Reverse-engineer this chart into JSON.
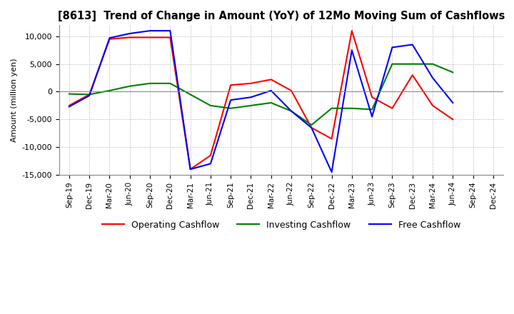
{
  "title": "[8613]  Trend of Change in Amount (YoY) of 12Mo Moving Sum of Cashflows",
  "ylabel": "Amount (million yen)",
  "background_color": "#ffffff",
  "grid_color": "#aaaaaa",
  "x_labels": [
    "Sep-19",
    "Dec-19",
    "Mar-20",
    "Jun-20",
    "Sep-20",
    "Dec-20",
    "Mar-21",
    "Jun-21",
    "Sep-21",
    "Dec-21",
    "Mar-22",
    "Jun-22",
    "Sep-22",
    "Dec-22",
    "Mar-23",
    "Jun-23",
    "Sep-23",
    "Dec-23",
    "Mar-24",
    "Jun-24",
    "Sep-24",
    "Dec-24"
  ],
  "operating": [
    -2500,
    -500,
    9500,
    9800,
    9800,
    9800,
    -14000,
    -11500,
    1200,
    1500,
    2200,
    200,
    -6500,
    -8500,
    11000,
    -1000,
    -3000,
    3000,
    -2500,
    -5000,
    null,
    null
  ],
  "investing": [
    -400,
    -500,
    200,
    1000,
    1500,
    1500,
    -500,
    -2500,
    -3000,
    -2500,
    -2000,
    -3500,
    -6000,
    -3000,
    -3000,
    -3200,
    5000,
    5000,
    5000,
    3500,
    null,
    null
  ],
  "free": [
    -2700,
    -700,
    9700,
    10500,
    11000,
    11000,
    -14000,
    -13000,
    -1500,
    -1000,
    200,
    -3500,
    -6500,
    -14500,
    7500,
    -4500,
    8000,
    8500,
    2500,
    -2000,
    null,
    null
  ],
  "ylim": [
    -15000,
    12000
  ],
  "yticks": [
    -15000,
    -10000,
    -5000,
    0,
    5000,
    10000
  ],
  "colors": {
    "operating": "#ff0000",
    "investing": "#008000",
    "free": "#0000ff"
  },
  "legend": [
    "Operating Cashflow",
    "Investing Cashflow",
    "Free Cashflow"
  ]
}
